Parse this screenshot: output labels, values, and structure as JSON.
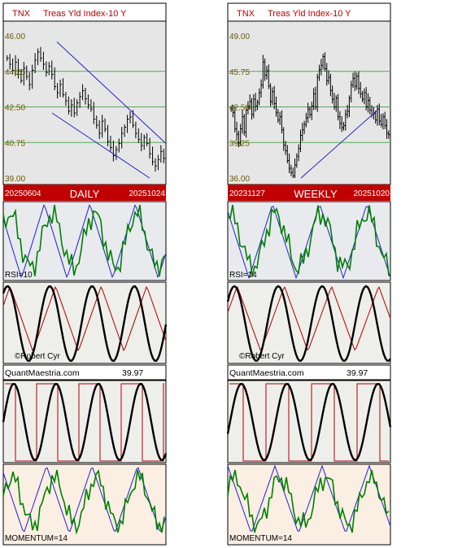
{
  "colors": {
    "hdr_bg": "#ffffff",
    "hdr_text": "#b80000",
    "price_bg": "#e6e6e6",
    "grid": "#55aa55",
    "bar": "#000000",
    "channel": "#2222cc",
    "date_bar_bg": "#c00000",
    "date_bar_text": "#ffffff",
    "rsi_bg": "#e8eaee",
    "rsi_line": "#008000",
    "saw": "#2222cc",
    "cyc_bg": "#eeeeea",
    "tri": "#aa0000",
    "sq_bg": "#eeeeea",
    "mom_bg": "#fbeee2",
    "border": "#000000"
  },
  "panels": [
    {
      "id": "daily",
      "symbol": "TNX",
      "name": "Treas Yld Index-10 Y",
      "y_ticks": [
        "46.00",
        "44.25",
        "42.50",
        "40.75",
        "39.00"
      ],
      "start_date": "20250604",
      "period": "DAILY",
      "end_date": "20251024",
      "rsi_label": "RSI=10",
      "copyright": "©Robert Cyr",
      "site": "QuantMaestria.com",
      "last_price": "39.97",
      "momentum_label": "MOMENTUM=14"
    },
    {
      "id": "weekly",
      "symbol": "TNX",
      "name": "Treas Yld Index-10 Y",
      "y_ticks": [
        "49.00",
        "45.75",
        "42.50",
        "39.25",
        "36.00"
      ],
      "start_date": "20231127",
      "period": "WEEKLY",
      "end_date": "20251020",
      "rsi_label": "RSI=14",
      "copyright": "©Robert Cyr",
      "site": "QuantMaestria.com",
      "last_price": "39.97",
      "momentum_label": "MOMENTUM=14"
    }
  ],
  "chart_data": [
    {
      "type": "bar",
      "title": "TNX Treas Yld Index-10 Y",
      "period": "DAILY",
      "ylim": [
        39.0,
        46.0
      ],
      "y_ticks": [
        46.0,
        44.25,
        42.5,
        40.75,
        39.0
      ],
      "grid": true,
      "start": "20250604",
      "end": "20251024",
      "close": [
        44.9,
        44.6,
        44.3,
        44.7,
        44.1,
        43.8,
        44.4,
        44.0,
        43.6,
        44.3,
        44.8,
        45.2,
        44.9,
        44.6,
        44.2,
        44.5,
        44.1,
        43.5,
        43.2,
        43.6,
        43.1,
        42.8,
        42.3,
        42.6,
        42.2,
        42.7,
        43.0,
        43.3,
        42.9,
        42.6,
        42.4,
        41.9,
        41.6,
        41.2,
        41.8,
        41.4,
        40.8,
        40.5,
        40.1,
        40.4,
        40.7,
        41.2,
        41.5,
        41.9,
        42.0,
        41.6,
        41.2,
        40.9,
        40.6,
        41.0,
        40.7,
        40.2,
        39.8,
        39.6,
        39.9,
        40.3,
        39.97
      ],
      "channel_upper": [
        [
          0.33,
          45.7
        ],
        [
          1.0,
          40.7
        ]
      ],
      "channel_lower": [
        [
          0.3,
          42.2
        ],
        [
          0.9,
          39.0
        ]
      ]
    },
    {
      "type": "bar",
      "title": "TNX Treas Yld Index-10 Y",
      "period": "WEEKLY",
      "ylim": [
        36.0,
        49.0
      ],
      "y_ticks": [
        49.0,
        45.75,
        42.5,
        39.25,
        36.0
      ],
      "grid": true,
      "start": "20231127",
      "end": "20251020",
      "close": [
        42.3,
        42.0,
        40.5,
        40.0,
        39.2,
        40.5,
        41.6,
        40.2,
        42.2,
        42.5,
        43.0,
        41.8,
        43.2,
        42.6,
        42.9,
        43.8,
        44.5,
        46.6,
        45.4,
        45.8,
        44.4,
        43.0,
        43.9,
        42.8,
        42.0,
        41.3,
        41.6,
        40.4,
        39.0,
        38.5,
        37.6,
        36.9,
        36.5,
        36.2,
        37.2,
        38.0,
        38.7,
        39.9,
        40.4,
        40.9,
        41.5,
        42.3,
        41.8,
        42.6,
        43.7,
        42.5,
        45.2,
        45.9,
        46.3,
        47.1,
        46.0,
        44.9,
        45.2,
        44.0,
        43.2,
        42.5,
        43.3,
        41.6,
        41.0,
        40.6,
        40.8,
        41.8,
        42.1,
        43.3,
        44.5,
        45.1,
        44.4,
        45.3,
        44.2,
        43.7,
        43.2,
        43.8,
        42.5,
        43.1,
        42.2,
        41.8,
        41.9,
        41.3,
        42.3,
        41.2,
        40.9,
        41.6,
        40.8,
        40.1,
        39.97
      ],
      "channel_lower": [
        [
          0.45,
          36.0
        ],
        [
          0.92,
          42.2
        ]
      ]
    }
  ]
}
